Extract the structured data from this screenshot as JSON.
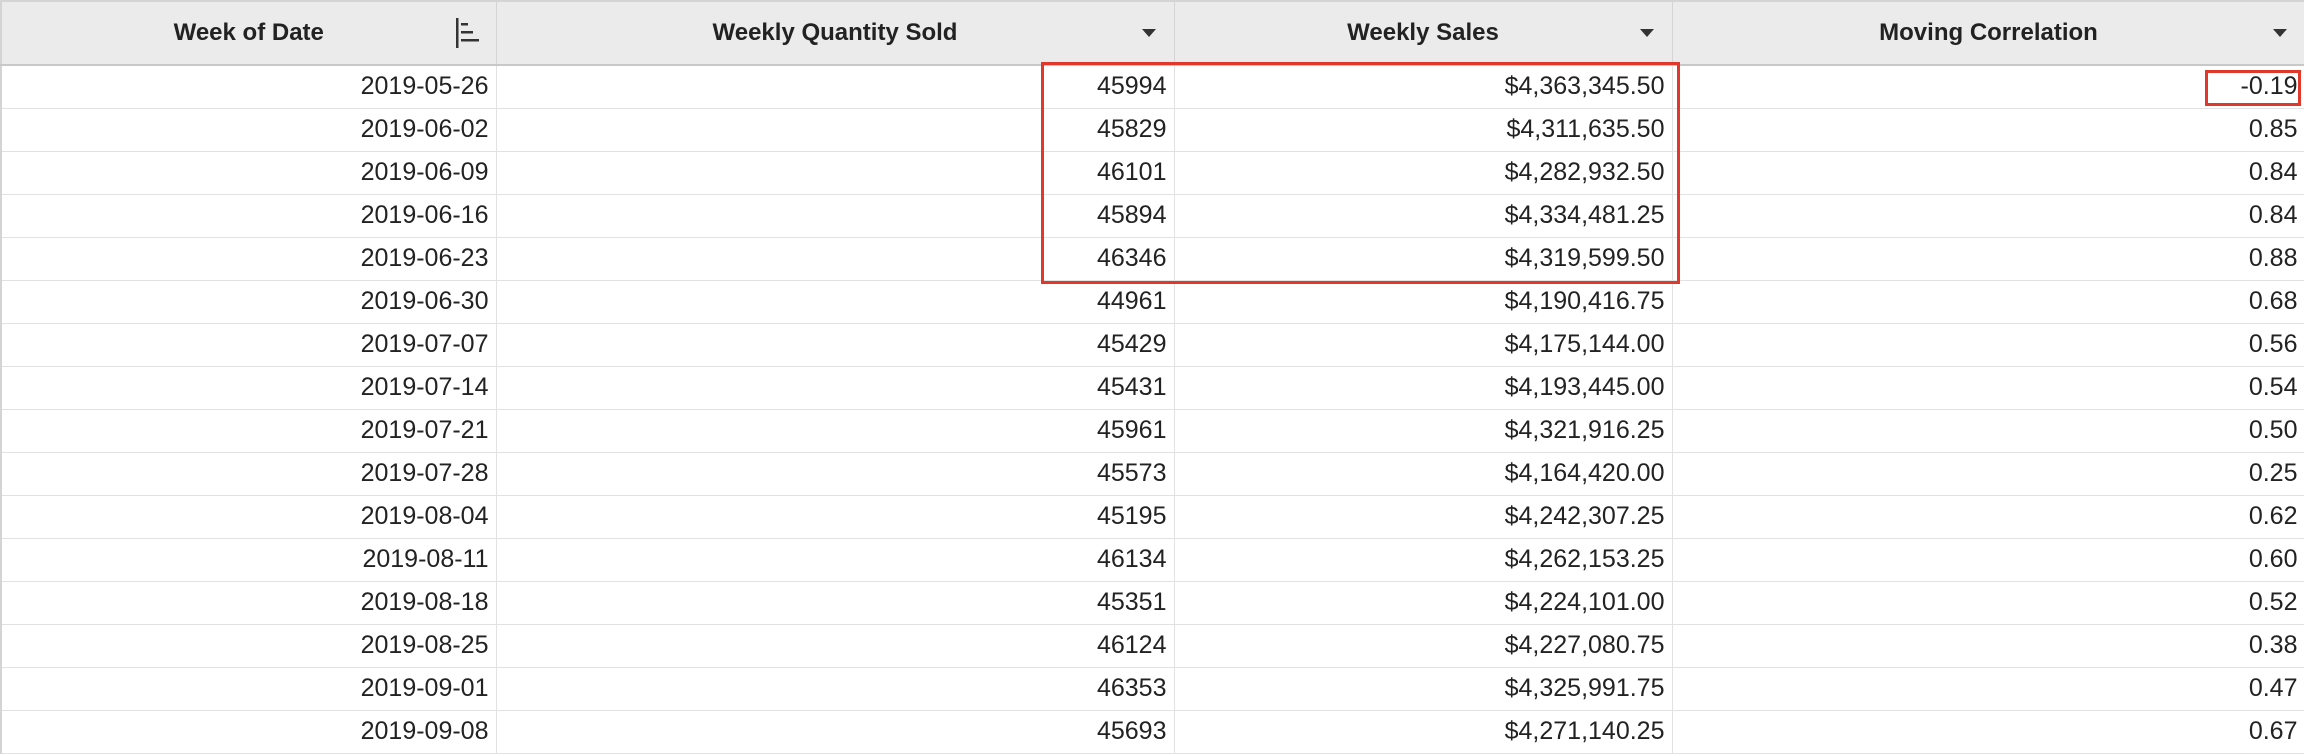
{
  "table": {
    "columns": [
      {
        "label": "Week of Date",
        "icon": "sort-bars-icon"
      },
      {
        "label": "Weekly Quantity Sold",
        "icon": "chevron-down-icon"
      },
      {
        "label": "Weekly Sales",
        "icon": "chevron-down-icon"
      },
      {
        "label": "Moving Correlation",
        "icon": "chevron-down-icon"
      }
    ],
    "rows": [
      [
        "2019-05-26",
        "45994",
        "$4,363,345.50",
        "-0.19"
      ],
      [
        "2019-06-02",
        "45829",
        "$4,311,635.50",
        "0.85"
      ],
      [
        "2019-06-09",
        "46101",
        "$4,282,932.50",
        "0.84"
      ],
      [
        "2019-06-16",
        "45894",
        "$4,334,481.25",
        "0.84"
      ],
      [
        "2019-06-23",
        "46346",
        "$4,319,599.50",
        "0.88"
      ],
      [
        "2019-06-30",
        "44961",
        "$4,190,416.75",
        "0.68"
      ],
      [
        "2019-07-07",
        "45429",
        "$4,175,144.00",
        "0.56"
      ],
      [
        "2019-07-14",
        "45431",
        "$4,193,445.00",
        "0.54"
      ],
      [
        "2019-07-21",
        "45961",
        "$4,321,916.25",
        "0.50"
      ],
      [
        "2019-07-28",
        "45573",
        "$4,164,420.00",
        "0.25"
      ],
      [
        "2019-08-04",
        "45195",
        "$4,242,307.25",
        "0.62"
      ],
      [
        "2019-08-11",
        "46134",
        "$4,262,153.25",
        "0.60"
      ],
      [
        "2019-08-18",
        "45351",
        "$4,224,101.00",
        "0.52"
      ],
      [
        "2019-08-25",
        "46124",
        "$4,227,080.75",
        "0.38"
      ],
      [
        "2019-09-01",
        "46353",
        "$4,325,991.75",
        "0.47"
      ],
      [
        "2019-09-08",
        "45693",
        "$4,271,140.25",
        "0.67"
      ]
    ]
  },
  "colors": {
    "header_bg": "#ebebeb",
    "grid_line": "#e2e2e2",
    "highlight": "#e0382b"
  }
}
